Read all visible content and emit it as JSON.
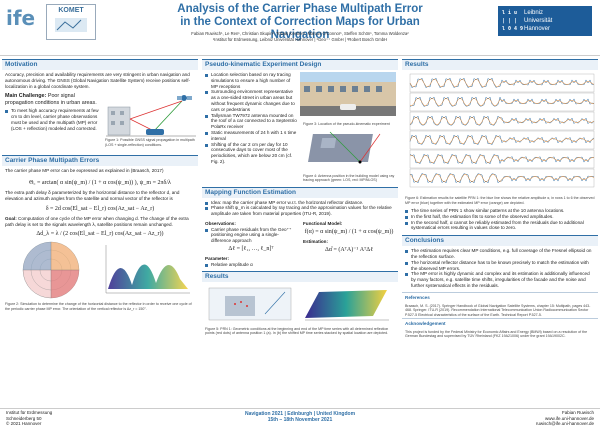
{
  "header": {
    "logo_ife": "ife",
    "logo_komet": "KOMET",
    "title_line1": "Analysis of the Carrier Phase Multipath Error",
    "title_line2": "in the Context of Correction Maps for Urban Navigation",
    "authors": "Fabian Ruwisch¹, Le Ren¹, Christian Skupin², Tobias Kersten¹, Marcus O'Connor¹, Steffen Schön¹, Tomma Woldenza²",
    "affiliations": "¹Institut für Erdmessung, Leibniz Universität Hannover | ²Geo⁺⁺ GmbH | ³Robert Bosch GmbH",
    "luh_symbol": "l i u\n| | |\nl 0 4 9",
    "luh_name": "Leibniz\nUniversität\nHannover"
  },
  "left": {
    "motivation_title": "Motivation",
    "motivation_text": "Accuracy, precision and availability requirements are very stringent in urban navigation and autonomous driving. The GNSS (Global Navigation Satellite System) receive positions self-localization in a global coordinate system.",
    "challenge_label": "Main Challenge:",
    "challenge_text": "Poor signal propagation conditions in urban areas.",
    "challenge_bullet": "To meet high accuracy requirements at few cm to dm level, carrier phase observations must be used and the multipath (MP) error (LOS + reflection) modeled and corrected.",
    "fig1_caption": "Figure 1: Possible GNSS signal propagation in multipath (LOS + single-reflection) conditions.",
    "cpme_title": "Carrier Phase Multipath Errors",
    "cpme_text1": "The carrier phase MP error can be expressed as explained in (Braasch, 2017)",
    "cpme_formula1": "Θ꜀ = arctan( α sin(ψ_m) / (1 + α cos(ψ_m)) ),  ψ_m = 2πδ/λ",
    "cpme_text2": "The extra path delay δ parameterized by the horizontal distance to the reflector d, and elevation and azimuth angles from the satellite and normal vector of the reflector is",
    "cpme_formula2": "δ = 2d cos(El_sat − El_r) cos(Az_sat − Az_r)",
    "goal_label": "Goal:",
    "goal_text": "Computation of one cycle of the MP error when changing d. The change of the extra path delay is set to the signals wavelength λ, satellite positions remain unchanged.",
    "cpme_formula3": "Δd_λ = λ / (2 cos(El_sat − El_r) cos(Az_sat − Az_r))",
    "fig2_caption": "Figure 2: Simulation to determine the change of the horizontal distance to the reflector in order to receive one cycle of the periodic carrier phase MP error. The orientation of the vertical reflector is Az_r = 150°."
  },
  "mid": {
    "exp_title": "Pseudo-kinematic Experiment Design",
    "exp_bullets": [
      "Location selection based on ray tracing simulations to ensure a high number of MP receptions",
      "Surrounding environment representative as a one-sided street in urban areas but without frequent dynamic changes due to cars or pedestrians",
      "Tallysman TW7972 antenna mounted on the roof of a car connected to a Septentrio PolaRx receiver",
      "Static measurements of 24 h with 1 s time interval",
      "Shifting of the car 2 cm per day for 10 consecutive days to cover most of the periodicities, which are below 20 cm (cf. Fig. 2)."
    ],
    "fig3_caption": "Figure 3: Location of the pseudo-kinematic experiment",
    "fig4_caption": "Figure 4: Antenna position in the building model using ray tracing approach (green: LOS, red: MP/NLOS)",
    "map_title": "Mapping Function Estimation",
    "map_bullets": [
      "Idea: map the carrier phase MP error w.r.t. the horizontal reflector distance.",
      "Phase shift ψ_m is calculated by ray tracing and the approximation values for the relative amplitude are taken from material properties (ITU-R, 2019)."
    ],
    "obs_label": "Observations:",
    "obs_bullet": "Carrier phase residuals from the Geo⁺⁺ positioning engine using a single-difference approach",
    "obs_formula": "Δℓ = [ℓ₁, …, ℓ_n]ᵀ",
    "param_label": "Parameter:",
    "param_bullet": "Relative amplitude α",
    "func_label": "Functional Model:",
    "func_formula": "f(α) = α sin(ψ_m) / (1 + α cos(ψ_m))",
    "est_label": "Estimation:",
    "est_formula": "Δα̂ = (AᵀA)⁻¹ AᵀΔℓ",
    "results_title": "Results",
    "fig5_caption": "Figure 5: PRN 1: Geometric conditions at the beginning and end of the MP time series with all determined reflection points (red dots) of antenna position 1 (a). In (b) the shifted MP time series stacked by spatial location are depicted."
  },
  "right": {
    "results_title": "Results",
    "fig6_caption": "Figure 6: Estimation results for satellite PRN 1: the blue line shows the relative amplitude α, in rows 1 to 6 the observed MP error (blue) together with the estimated MP error (orange) are depicted.",
    "results_bullets": [
      "The time series of PRN 1 show similar patterns at the 10 antenna locations.",
      "In the first half, the estimation fits to some of the observed amplitudes.",
      "In the second half, α cannot be reliably estimated from the residuals due to additional systematical errors resulting in values close to zero."
    ],
    "conc_title": "Conclusions",
    "conc_bullets": [
      "The estimation requires clear MP conditions, e.g. full coverage of the Fresnel ellipsoid on the reflection surface.",
      "The horizontal reflector distance has to be known precisely to match the estimation with the observed MP errors.",
      "The MP error is highly dynamic and complex and its estimation is additionally influenced by many factors, e.g. satellite time shifts, irregularities of the facade and the noise and further systematical effects in the residuals."
    ],
    "ref_title": "References",
    "ref_text": "Braasch, M. S. (2017). Springer Handbook of Global Navigation Satellite Systems, chapter 15: Multipath, pages 443-468. Springer. ITU-R (2019). Recommendation International Telecommunication Union Radiocommunication Sector P.527-5 Electrical characteristics of the surface of the Earth. Technical Report P.527-5.",
    "ack_title": "Acknowledgement",
    "ack_text": "This project is funded by the Federal Ministry for Economic Affairs and Energy (BMWi) based on a resolution of the German Bundestag and supervised by TÜV Rheinland (FKZ 19A21006) under the grant 19A19002C."
  },
  "footer": {
    "left1": "Institut für Erdmessung",
    "left2": "Schneiderberg 50",
    "left3": "© 2021 Hannover",
    "mid1": "Navigation 2021 | Edinburgh | United Kingdom",
    "mid2": "15th – 18th November 2021",
    "right1": "Fabian Ruwisch",
    "right2": "www.ife.uni-hannover.de",
    "right3": "ruwisch@ife.uni-hannover.de"
  }
}
